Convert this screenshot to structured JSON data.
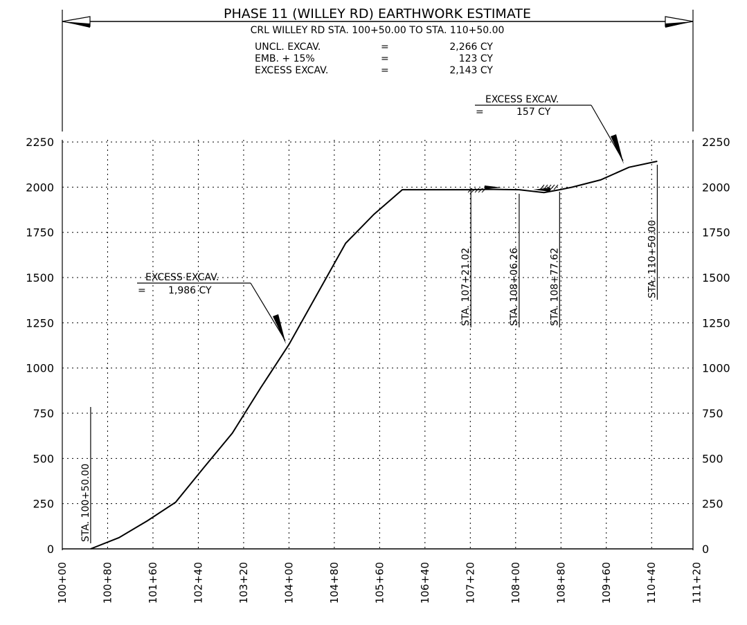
{
  "header": {
    "title": "PHASE 11 (WILLEY RD) EARTHWORK ESTIMATE",
    "subtitle": "CRL WILLEY RD STA. 100+50.00 TO STA. 110+50.00",
    "rows": [
      {
        "label": "UNCL. EXCAV.",
        "eq": "=",
        "value": "2,266 CY"
      },
      {
        "label": "EMB. + 15%",
        "eq": "=",
        "value": "123 CY"
      },
      {
        "label": "EXCESS EXCAV.",
        "eq": "=",
        "value": "2,143 CY"
      }
    ]
  },
  "annotations": {
    "excess_left": {
      "title": "EXCESS EXCAV.",
      "eq": "=",
      "value": "1,986 CY"
    },
    "excess_right": {
      "title": "EXCESS EXCAV.",
      "eq": "=",
      "value": "157 CY"
    }
  },
  "station_markers": [
    {
      "label": "STA. 100+50.00",
      "x": 50
    },
    {
      "label": "STA. 107+21.02",
      "x": 721.02
    },
    {
      "label": "STA. 108+06.26",
      "x": 806.26
    },
    {
      "label": "STA. 108+77.62",
      "x": 877.62
    },
    {
      "label": "STA. 110+50.00",
      "x": 1050
    }
  ],
  "colors": {
    "line": "#000000",
    "grid": "#000000",
    "background": "#ffffff"
  },
  "chart_data": {
    "type": "line",
    "title": "PHASE 11 (WILLEY RD) EARTHWORK ESTIMATE",
    "xlabel": "",
    "ylabel": "",
    "xlim": [
      0,
      1100
    ],
    "ylim": [
      0,
      2250
    ],
    "grid": true,
    "x_ticks": [
      0,
      80,
      160,
      240,
      320,
      400,
      480,
      560,
      640,
      720,
      800,
      880,
      960,
      1040,
      1120
    ],
    "x_tick_labels": [
      "100+00",
      "100+80",
      "101+60",
      "102+40",
      "103+20",
      "104+00",
      "104+80",
      "105+60",
      "106+40",
      "107+20",
      "108+00",
      "108+80",
      "109+60",
      "110+40",
      "111+20"
    ],
    "y_ticks": [
      0,
      250,
      500,
      750,
      1000,
      1250,
      1500,
      1750,
      2000,
      2250
    ],
    "y_tick_labels_left": [
      "0",
      "250",
      "500",
      "750",
      "1000",
      "1250",
      "1500",
      "1750",
      "2000",
      "2250"
    ],
    "y_tick_labels_right": [
      "0",
      "250",
      "500",
      "750",
      "1000",
      "1250",
      "1500",
      "1750",
      "2000",
      "2250"
    ],
    "series": [
      {
        "x": [
          50,
          100,
          150,
          200,
          250,
          300,
          350,
          400,
          450,
          500,
          550,
          600,
          650,
          700,
          721.02,
          750,
          806.26,
          850,
          877.62,
          900,
          950,
          1000,
          1050
        ],
        "y": [
          0,
          62,
          155,
          258,
          450,
          640,
          890,
          1130,
          1410,
          1690,
          1850,
          1986,
          1986,
          1986,
          1986,
          1988,
          1986,
          1970,
          1986,
          2000,
          2040,
          2110,
          2143
        ]
      }
    ]
  }
}
